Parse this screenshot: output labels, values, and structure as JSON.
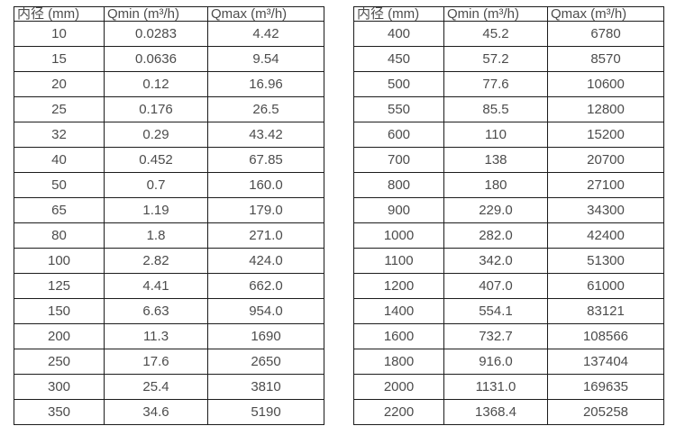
{
  "page": {
    "background_color": "#ffffff",
    "text_color": "#4c4c4c",
    "border_color": "#1c1c1c"
  },
  "tables": [
    {
      "name": "flow-rate-table-small-diameters",
      "columns": [
        "内径 (mm)",
        "Qmin (m³/h)",
        "Qmax (m³/h)"
      ],
      "rows": [
        [
          "10",
          "0.0283",
          "4.42"
        ],
        [
          "15",
          "0.0636",
          "9.54"
        ],
        [
          "20",
          "0.12",
          "16.96"
        ],
        [
          "25",
          "0.176",
          "26.5"
        ],
        [
          "32",
          "0.29",
          "43.42"
        ],
        [
          "40",
          "0.452",
          "67.85"
        ],
        [
          "50",
          "0.7",
          "160.0"
        ],
        [
          "65",
          "1.19",
          "179.0"
        ],
        [
          "80",
          "1.8",
          "271.0"
        ],
        [
          "100",
          "2.82",
          "424.0"
        ],
        [
          "125",
          "4.41",
          "662.0"
        ],
        [
          "150",
          "6.63",
          "954.0"
        ],
        [
          "200",
          "11.3",
          "1690"
        ],
        [
          "250",
          "17.6",
          "2650"
        ],
        [
          "300",
          "25.4",
          "3810"
        ],
        [
          "350",
          "34.6",
          "5190"
        ]
      ]
    },
    {
      "name": "flow-rate-table-large-diameters",
      "columns": [
        "内径 (mm)",
        "Qmin (m³/h)",
        "Qmax (m³/h)"
      ],
      "rows": [
        [
          "400",
          "45.2",
          "6780"
        ],
        [
          "450",
          "57.2",
          "8570"
        ],
        [
          "500",
          "77.6",
          "10600"
        ],
        [
          "550",
          "85.5",
          "12800"
        ],
        [
          "600",
          "110",
          "15200"
        ],
        [
          "700",
          "138",
          "20700"
        ],
        [
          "800",
          "180",
          "27100"
        ],
        [
          "900",
          "229.0",
          "34300"
        ],
        [
          "1000",
          "282.0",
          "42400"
        ],
        [
          "1100",
          "342.0",
          "51300"
        ],
        [
          "1200",
          "407.0",
          "61000"
        ],
        [
          "1400",
          "554.1",
          "83121"
        ],
        [
          "1600",
          "732.7",
          "108566"
        ],
        [
          "1800",
          "916.0",
          "137404"
        ],
        [
          "2000",
          "1131.0",
          "169635"
        ],
        [
          "2200",
          "1368.4",
          "205258"
        ]
      ]
    }
  ]
}
